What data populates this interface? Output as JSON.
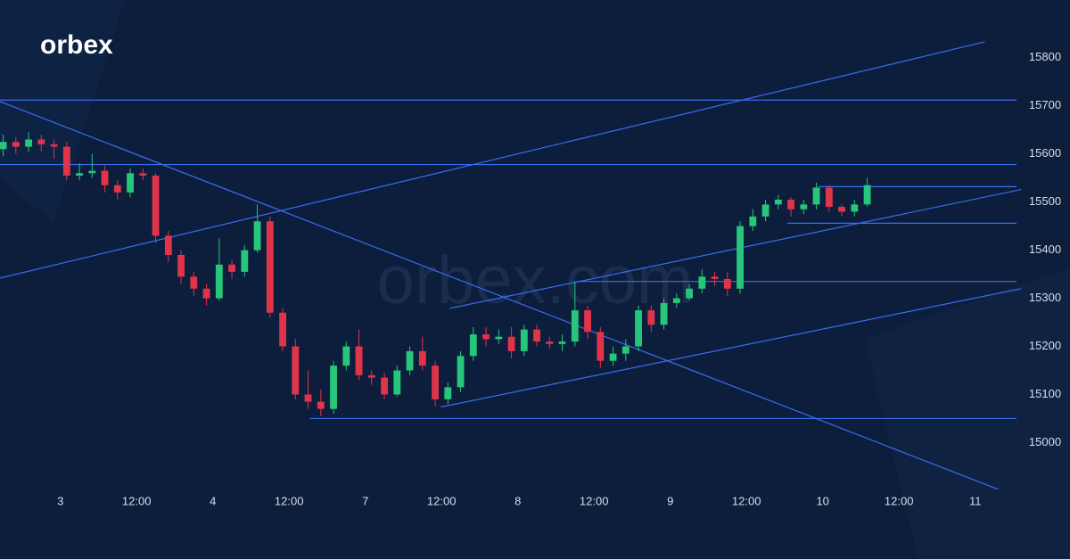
{
  "logo": "orbex",
  "watermark": "orbex.com",
  "chart_data": {
    "type": "candlestick",
    "up_color": "#26c77a",
    "down_color": "#e0344a",
    "line_color": "#3a6df0",
    "xlim": [
      -9.5,
      150.5
    ],
    "ylim": [
      14910,
      15920
    ],
    "yticks": [
      15000,
      15100,
      15200,
      15300,
      15400,
      15500,
      15600,
      15700,
      15800
    ],
    "xticks": [
      {
        "value": 0,
        "label": "3"
      },
      {
        "value": 12,
        "label": "12:00"
      },
      {
        "value": 24,
        "label": "4"
      },
      {
        "value": 36,
        "label": "12:00"
      },
      {
        "value": 48,
        "label": "7"
      },
      {
        "value": 60,
        "label": "12:00"
      },
      {
        "value": 72,
        "label": "8"
      },
      {
        "value": 84,
        "label": "12:00"
      },
      {
        "value": 96,
        "label": "9"
      },
      {
        "value": 108,
        "label": "12:00"
      },
      {
        "value": 120,
        "label": "10"
      },
      {
        "value": 132,
        "label": "12:00"
      },
      {
        "value": 144,
        "label": "11"
      }
    ],
    "x": [
      -9,
      -7,
      -5,
      -3,
      -1,
      1,
      3,
      5,
      7,
      9,
      11,
      13,
      15,
      17,
      19,
      21,
      23,
      25,
      27,
      29,
      31,
      33,
      35,
      37,
      39,
      41,
      43,
      45,
      47,
      49,
      51,
      53,
      55,
      57,
      59,
      61,
      63,
      65,
      67,
      69,
      71,
      73,
      75,
      77,
      79,
      81,
      83,
      85,
      87,
      89,
      91,
      93,
      95,
      97,
      99,
      101,
      103,
      105,
      107,
      109,
      111,
      113,
      115,
      117,
      119,
      121,
      123,
      125,
      127
    ],
    "open": [
      15610,
      15625,
      15615,
      15630,
      15620,
      15615,
      15555,
      15560,
      15565,
      15535,
      15520,
      15560,
      15555,
      15430,
      15390,
      15345,
      15320,
      15300,
      15370,
      15355,
      15400,
      15460,
      15270,
      15200,
      15100,
      15085,
      15070,
      15160,
      15200,
      15140,
      15135,
      15100,
      15150,
      15190,
      15160,
      15090,
      15115,
      15180,
      15225,
      15215,
      15220,
      15190,
      15235,
      15210,
      15205,
      15210,
      15275,
      15230,
      15170,
      15185,
      15200,
      15275,
      15245,
      15290,
      15300,
      15320,
      15345,
      15340,
      15320,
      15450,
      15470,
      15495,
      15505,
      15485,
      15495,
      15530,
      15490,
      15480,
      15495
    ],
    "high": [
      15640,
      15635,
      15645,
      15640,
      15630,
      15625,
      15580,
      15600,
      15575,
      15545,
      15570,
      15570,
      15560,
      15440,
      15400,
      15355,
      15330,
      15425,
      15380,
      15410,
      15495,
      15470,
      15280,
      15215,
      15150,
      15110,
      15170,
      15210,
      15235,
      15150,
      15145,
      15160,
      15200,
      15220,
      15170,
      15125,
      15190,
      15240,
      15240,
      15235,
      15240,
      15245,
      15245,
      15220,
      15225,
      15335,
      15285,
      15240,
      15200,
      15215,
      15285,
      15285,
      15300,
      15310,
      15330,
      15360,
      15355,
      15355,
      15460,
      15485,
      15505,
      15515,
      15510,
      15505,
      15540,
      15535,
      15495,
      15505,
      15550
    ],
    "low": [
      15595,
      15600,
      15605,
      15605,
      15590,
      15545,
      15545,
      15550,
      15520,
      15505,
      15510,
      15545,
      15415,
      15375,
      15330,
      15305,
      15285,
      15295,
      15340,
      15345,
      15395,
      15260,
      15190,
      15090,
      15070,
      15055,
      15060,
      15150,
      15130,
      15120,
      15090,
      15095,
      15140,
      15150,
      15075,
      15080,
      15105,
      15170,
      15200,
      15205,
      15175,
      15180,
      15200,
      15195,
      15190,
      15200,
      15215,
      15155,
      15160,
      15170,
      15190,
      15230,
      15235,
      15280,
      15295,
      15310,
      15325,
      15305,
      15310,
      15440,
      15460,
      15485,
      15470,
      15475,
      15485,
      15480,
      15470,
      15470,
      15490
    ],
    "close": [
      15625,
      15615,
      15630,
      15620,
      15615,
      15555,
      15560,
      15565,
      15535,
      15520,
      15560,
      15555,
      15430,
      15390,
      15345,
      15320,
      15300,
      15370,
      15355,
      15400,
      15460,
      15270,
      15200,
      15100,
      15085,
      15070,
      15160,
      15200,
      15140,
      15135,
      15100,
      15150,
      15190,
      15160,
      15090,
      15115,
      15180,
      15225,
      15215,
      15220,
      15190,
      15235,
      15210,
      15205,
      15210,
      15275,
      15230,
      15170,
      15185,
      15200,
      15275,
      15245,
      15290,
      15300,
      15320,
      15345,
      15340,
      15320,
      15450,
      15470,
      15495,
      15505,
      15485,
      15495,
      15530,
      15490,
      15480,
      15495,
      15535
    ],
    "lines": [
      {
        "x": [
          -9.5,
          145.5
        ],
        "y": [
          15342,
          15833
        ]
      },
      {
        "x": [
          -9.5,
          147.6
        ],
        "y": [
          15709,
          14903
        ]
      },
      {
        "x": [
          -9.5,
          150.5
        ],
        "y": [
          15712,
          15712
        ]
      },
      {
        "x": [
          -9.5,
          150.5
        ],
        "y": [
          15578,
          15578
        ]
      },
      {
        "x": [
          61.3,
          151.2
        ],
        "y": [
          15279,
          15526
        ]
      },
      {
        "x": [
          59.9,
          151.2
        ],
        "y": [
          15074,
          15320
        ]
      },
      {
        "x": [
          39.3,
          150.5
        ],
        "y": [
          15050,
          15050
        ]
      },
      {
        "x": [
          81.4,
          150.5
        ],
        "y": [
          15335,
          15335
        ]
      },
      {
        "x": [
          114.4,
          150.5
        ],
        "y": [
          15456,
          15456
        ]
      },
      {
        "x": [
          119.3,
          150.5
        ],
        "y": [
          15532,
          15532
        ]
      }
    ]
  }
}
